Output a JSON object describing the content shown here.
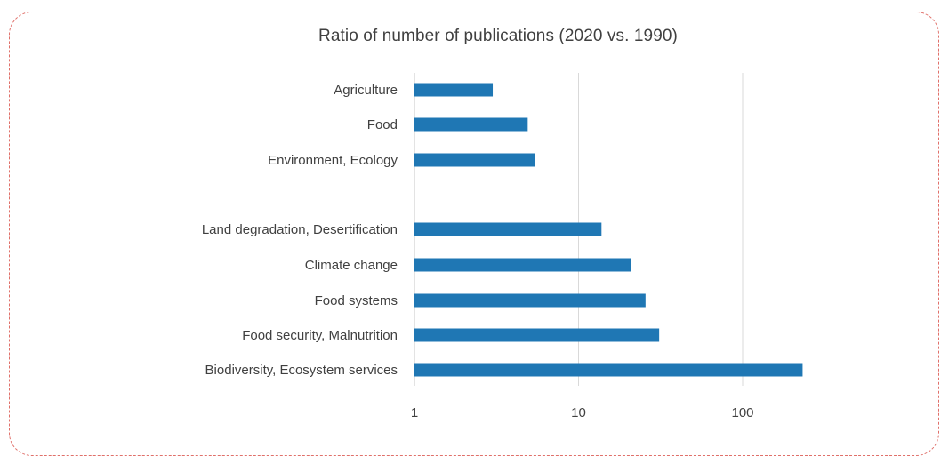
{
  "chart_data": {
    "type": "bar",
    "orientation": "horizontal",
    "title": "Ratio of number of publications (2020 vs. 1990)",
    "xscale": "log",
    "xlim": [
      1,
      300
    ],
    "xticks": [
      {
        "value": 1,
        "label": "1"
      },
      {
        "value": 10,
        "label": "10"
      },
      {
        "value": 100,
        "label": "100"
      }
    ],
    "grid": "vertical",
    "bar_color": "#1f77b4",
    "categories": [
      {
        "label": "Agriculture",
        "value": 3.0
      },
      {
        "label": "Food",
        "value": 4.9
      },
      {
        "label": "Environment, Ecology",
        "value": 5.4
      },
      {
        "label": "Land degradation, Desertification",
        "value": 13.8
      },
      {
        "label": "Climate change",
        "value": 20.8
      },
      {
        "label": "Food systems",
        "value": 25.6
      },
      {
        "label": "Food security, Malnutrition",
        "value": 31.0
      },
      {
        "label": "Biodiversity, Ecosystem services",
        "value": 232
      }
    ]
  }
}
